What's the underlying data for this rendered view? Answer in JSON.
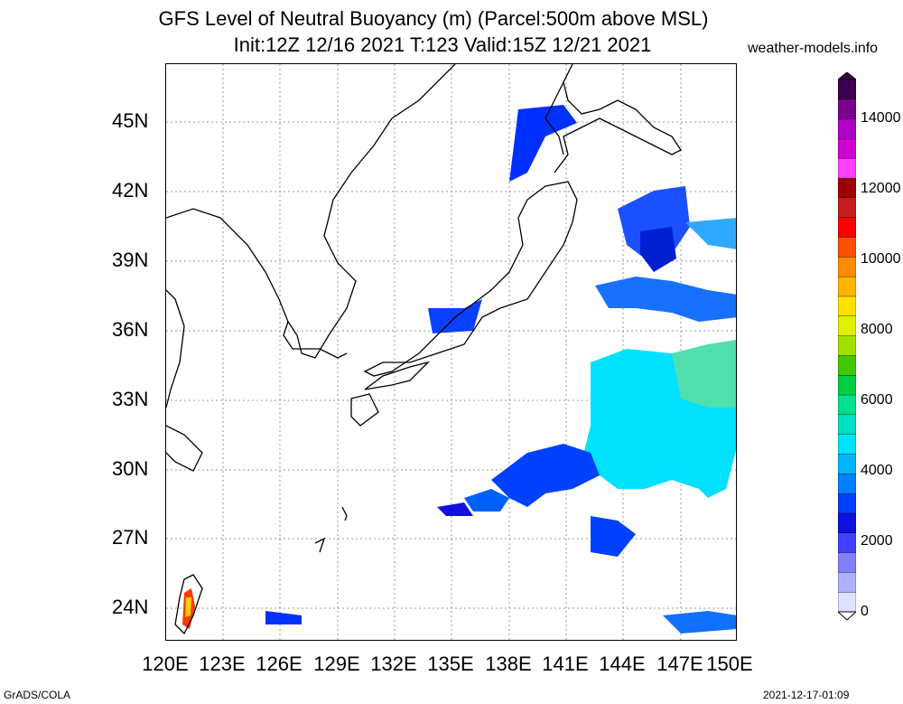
{
  "title_line1": "GFS Level of Neutral Buoyancy (m) (Parcel:500m above MSL)",
  "title_line2": "Init:12Z 12/16 2021 T:123 Valid:15Z 12/21 2021",
  "watermark": "weather-models.info",
  "lat_labels": [
    "45N",
    "42N",
    "39N",
    "36N",
    "33N",
    "30N",
    "27N",
    "24N"
  ],
  "lon_labels": [
    "120E",
    "123E",
    "126E",
    "129E",
    "132E",
    "135E",
    "138E",
    "141E",
    "144E",
    "147E",
    "150E"
  ],
  "colorbar": {
    "labels": [
      "14000",
      "12000",
      "10000",
      "8000",
      "6000",
      "4000",
      "2000",
      "0"
    ],
    "colors": [
      "#3b0050",
      "#7a0090",
      "#b000c8",
      "#d000d0",
      "#ff40ff",
      "#a00000",
      "#c81e1e",
      "#ff0000",
      "#ff5000",
      "#ff8c00",
      "#ffb400",
      "#ffe000",
      "#e0f000",
      "#a0e000",
      "#40c800",
      "#00d040",
      "#00e090",
      "#00e0c0",
      "#00e0ff",
      "#00b4ff",
      "#0080ff",
      "#0040ff",
      "#1010e0",
      "#4040ff",
      "#8080ff",
      "#b0b0ff",
      "#e0e0ff"
    ]
  },
  "credit_left": "GrADS/COLA",
  "credit_right": "2021-12-17-01:09"
}
